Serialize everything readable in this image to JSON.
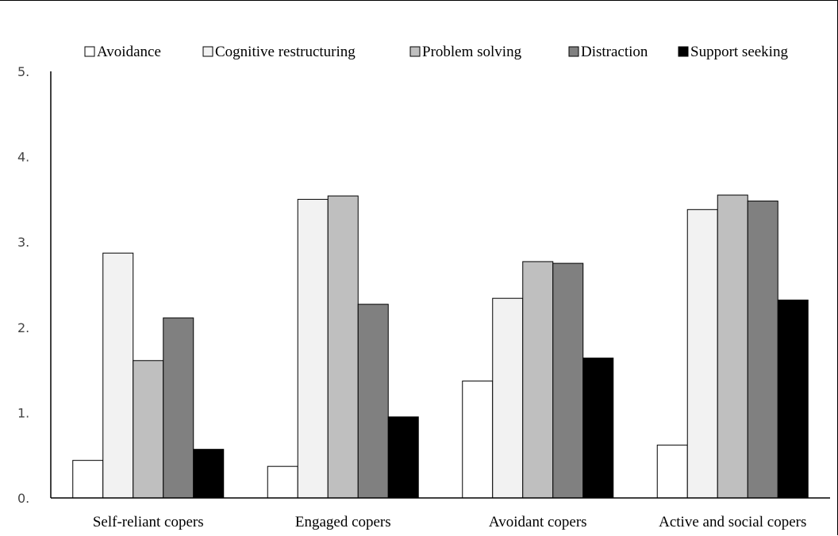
{
  "chart_data": {
    "type": "bar",
    "title": "",
    "xlabel": "",
    "ylabel": "",
    "ylim": [
      0,
      5
    ],
    "y_ticks": [
      0,
      1,
      2,
      3,
      4,
      5
    ],
    "y_tick_labels": [
      "0.",
      "1.",
      "2.",
      "3.",
      "4.",
      "5."
    ],
    "grid": false,
    "legend_position": "top",
    "categories": [
      "Self-reliant copers",
      "Engaged copers",
      "Avoidant copers",
      "Active and social copers"
    ],
    "series": [
      {
        "name": "Avoidance",
        "color": "#ffffff",
        "values": [
          0.44,
          0.37,
          1.37,
          0.62
        ]
      },
      {
        "name": "Cognitive restructuring",
        "color": "#f2f2f2",
        "values": [
          2.87,
          3.5,
          2.34,
          3.38
        ]
      },
      {
        "name": "Problem solving",
        "color": "#bfbfbf",
        "values": [
          1.61,
          3.54,
          2.77,
          3.55
        ]
      },
      {
        "name": "Distraction",
        "color": "#808080",
        "values": [
          2.11,
          2.27,
          2.75,
          3.48
        ]
      },
      {
        "name": "Support seeking",
        "color": "#000000",
        "values": [
          0.57,
          0.95,
          1.64,
          2.32
        ]
      }
    ]
  }
}
